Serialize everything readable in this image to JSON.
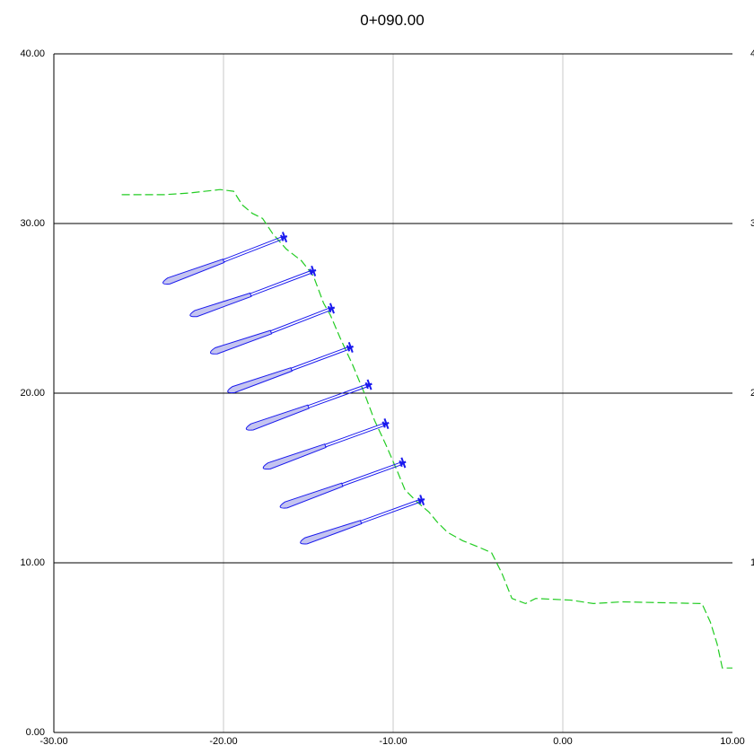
{
  "chart_data": {
    "type": "line",
    "title": "0+090.00",
    "xlabel": "",
    "ylabel": "",
    "xlim": [
      -30,
      10
    ],
    "ylim": [
      0,
      40
    ],
    "x_ticks": [
      "-30.00",
      "-20.00",
      "-10.00",
      "0.00",
      "10.00"
    ],
    "y_ticks": [
      "0.00",
      "10.00",
      "20.00",
      "30.00",
      "40.00"
    ],
    "right_y_ticks": [
      "1",
      "2",
      "3",
      "4"
    ],
    "grid": {
      "vertical": true,
      "horizontal": true
    },
    "colors": {
      "ground": "#22cc22",
      "anchor": "#1a1aee",
      "bulb_fill": "#c4c4f0",
      "vgrid": "#c8c8c8",
      "hgrid": "#000000"
    },
    "ground_profile": [
      [
        -26.0,
        31.7
      ],
      [
        -23.5,
        31.7
      ],
      [
        -22.0,
        31.8
      ],
      [
        -20.2,
        32.0
      ],
      [
        -19.4,
        31.9
      ],
      [
        -18.9,
        31.1
      ],
      [
        -18.3,
        30.6
      ],
      [
        -17.7,
        30.3
      ],
      [
        -17.1,
        29.4
      ],
      [
        -16.3,
        28.5
      ],
      [
        -15.4,
        27.8
      ],
      [
        -14.7,
        26.9
      ],
      [
        -14.1,
        25.3
      ],
      [
        -13.7,
        24.6
      ],
      [
        -13.1,
        23.2
      ],
      [
        -12.4,
        21.7
      ],
      [
        -11.7,
        20.0
      ],
      [
        -11.1,
        18.4
      ],
      [
        -10.4,
        16.9
      ],
      [
        -9.8,
        15.5
      ],
      [
        -9.3,
        14.3
      ],
      [
        -8.6,
        13.6
      ],
      [
        -7.9,
        13.0
      ],
      [
        -7.4,
        12.4
      ],
      [
        -6.8,
        11.8
      ],
      [
        -5.9,
        11.3
      ],
      [
        -4.9,
        10.9
      ],
      [
        -4.2,
        10.6
      ],
      [
        -3.6,
        9.4
      ],
      [
        -3.0,
        7.9
      ],
      [
        -2.2,
        7.6
      ],
      [
        -1.6,
        7.9
      ],
      [
        0.5,
        7.8
      ],
      [
        1.8,
        7.6
      ],
      [
        3.5,
        7.7
      ],
      [
        8.2,
        7.6
      ],
      [
        8.7,
        6.5
      ],
      [
        9.1,
        5.2
      ],
      [
        9.4,
        3.8
      ],
      [
        10.0,
        3.8
      ]
    ],
    "anchors": [
      {
        "head": [
          -16.4,
          29.2
        ],
        "bond_start": [
          -20.0,
          27.8
        ],
        "tip": [
          -23.8,
          26.4
        ]
      },
      {
        "head": [
          -14.7,
          27.2
        ],
        "bond_start": [
          -18.4,
          25.8
        ],
        "tip": [
          -22.2,
          24.5
        ]
      },
      {
        "head": [
          -13.6,
          25.0
        ],
        "bond_start": [
          -17.2,
          23.6
        ],
        "tip": [
          -21.0,
          22.3
        ]
      },
      {
        "head": [
          -12.5,
          22.7
        ],
        "bond_start": [
          -16.0,
          21.4
        ],
        "tip": [
          -20.0,
          20.0
        ]
      },
      {
        "head": [
          -11.4,
          20.5
        ],
        "bond_start": [
          -15.0,
          19.2
        ],
        "tip": [
          -18.9,
          17.8
        ]
      },
      {
        "head": [
          -10.4,
          18.2
        ],
        "bond_start": [
          -14.0,
          16.9
        ],
        "tip": [
          -17.9,
          15.5
        ]
      },
      {
        "head": [
          -9.4,
          15.9
        ],
        "bond_start": [
          -13.0,
          14.6
        ],
        "tip": [
          -16.9,
          13.2
        ]
      },
      {
        "head": [
          -8.3,
          13.7
        ],
        "bond_start": [
          -11.9,
          12.4
        ],
        "tip": [
          -15.7,
          11.1
        ]
      }
    ]
  }
}
